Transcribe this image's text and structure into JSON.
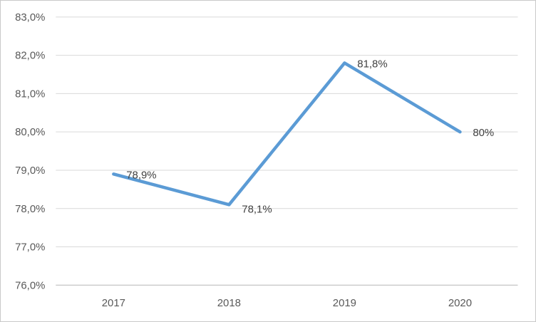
{
  "chart_data": {
    "type": "line",
    "title": "",
    "categories": [
      "2017",
      "2018",
      "2019",
      "2020"
    ],
    "series": [
      {
        "name": "percentage-series",
        "values": [
          78.9,
          78.1,
          81.8,
          80.0
        ],
        "point_labels": [
          "78,9%",
          "78,1%",
          "81,8%",
          "80%"
        ]
      }
    ],
    "xlabel": "",
    "ylabel": "",
    "ylim": [
      76,
      83
    ],
    "ytick_step": 1,
    "ytick_labels": [
      "83,0%",
      "82,0%",
      "81,0%",
      "80,0%",
      "79,0%",
      "78,0%",
      "77,0%",
      "76,0%"
    ],
    "grid": true,
    "legend": false,
    "legend_position": "none",
    "colors": {
      "line": "#5B9BD5",
      "gridline": "#D9D9D9",
      "axis_line": "#BFBFBF",
      "tick_text": "#595959",
      "data_label_text": "#404040",
      "background": "#FFFFFF",
      "frame_border": "#C9C9C9"
    }
  }
}
